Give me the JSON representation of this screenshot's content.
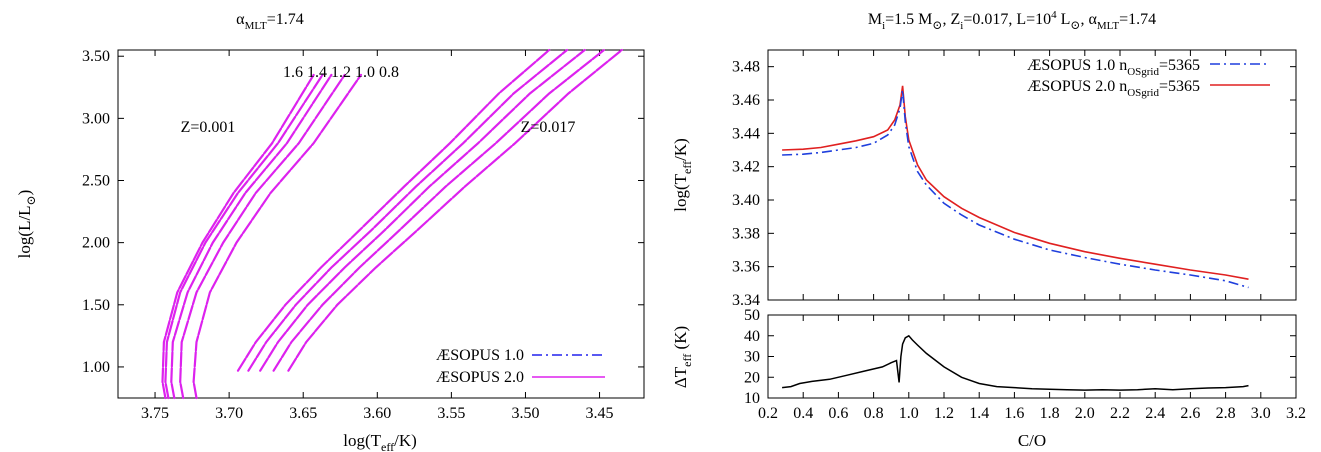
{
  "chart_data": [
    {
      "type": "line",
      "title": "α_MLT=1.74",
      "title_parts": {
        "symbol": "α",
        "sub": "MLT",
        "rest": "=1.74"
      },
      "xlabel": "log(T_eff/K)",
      "xlabel_parts": {
        "pre": "log(T",
        "sub": "eff",
        "post": "/K)"
      },
      "ylabel": "log(L/L⊙)",
      "ylabel_parts": {
        "pre": "log(L/L",
        "sub": "⊙",
        "post": ")"
      },
      "xlim": [
        3.775,
        3.42
      ],
      "ylim": [
        0.75,
        3.55
      ],
      "x_reversed": true,
      "xticks": [
        "3.75",
        "3.70",
        "3.65",
        "3.60",
        "3.55",
        "3.50",
        "3.45"
      ],
      "yticks": [
        "1.00",
        "1.50",
        "2.00",
        "2.50",
        "3.00",
        "3.50"
      ],
      "legend": {
        "placement": "bottom-right",
        "entries": [
          "ÆSOPUS 1.0",
          "ÆSOPUS 2.0"
        ]
      },
      "annotations": {
        "mass_labels": "1.6 1.4 1.2 1.0 0.8",
        "z_low": "Z=0.001",
        "z_high": "Z=0.017"
      },
      "colors": {
        "aesopus1": "#2222ee",
        "aesopus2": "#dd22ee"
      },
      "series": [
        {
          "group": "Z=0.001",
          "mass": "1.6",
          "x": [
            3.743,
            3.745,
            3.744,
            3.735,
            3.718,
            3.697,
            3.671,
            3.643
          ],
          "y": [
            0.75,
            0.88,
            1.2,
            1.6,
            2.0,
            2.4,
            2.8,
            3.35
          ]
        },
        {
          "group": "Z=0.001",
          "mass": "1.4",
          "x": [
            3.741,
            3.743,
            3.742,
            3.733,
            3.716,
            3.694,
            3.667,
            3.637
          ],
          "y": [
            0.75,
            0.88,
            1.2,
            1.6,
            2.0,
            2.4,
            2.8,
            3.35
          ]
        },
        {
          "group": "Z=0.001",
          "mass": "1.2",
          "x": [
            3.737,
            3.739,
            3.738,
            3.728,
            3.711,
            3.689,
            3.661,
            3.631
          ],
          "y": [
            0.75,
            0.88,
            1.2,
            1.6,
            2.0,
            2.4,
            2.8,
            3.35
          ]
        },
        {
          "group": "Z=0.001",
          "mass": "1.0",
          "x": [
            3.731,
            3.733,
            3.732,
            3.722,
            3.704,
            3.682,
            3.653,
            3.622
          ],
          "y": [
            0.75,
            0.88,
            1.2,
            1.6,
            2.0,
            2.4,
            2.8,
            3.35
          ]
        },
        {
          "group": "Z=0.001",
          "mass": "0.8",
          "x": [
            3.722,
            3.724,
            3.722,
            3.713,
            3.695,
            3.672,
            3.643,
            3.611
          ],
          "y": [
            0.75,
            0.88,
            1.2,
            1.6,
            2.0,
            2.4,
            2.8,
            3.35
          ]
        },
        {
          "group": "Z=0.017",
          "mass": "1.6",
          "x": [
            3.694,
            3.682,
            3.662,
            3.638,
            3.612,
            3.582,
            3.551,
            3.518,
            3.484
          ],
          "y": [
            0.97,
            1.2,
            1.5,
            1.8,
            2.1,
            2.45,
            2.8,
            3.2,
            3.55
          ]
        },
        {
          "group": "Z=0.017",
          "mass": "1.4",
          "x": [
            3.687,
            3.675,
            3.655,
            3.631,
            3.604,
            3.574,
            3.542,
            3.508,
            3.472
          ],
          "y": [
            0.97,
            1.2,
            1.5,
            1.8,
            2.1,
            2.45,
            2.8,
            3.2,
            3.55
          ]
        },
        {
          "group": "Z=0.017",
          "mass": "1.2",
          "x": [
            3.679,
            3.667,
            3.647,
            3.622,
            3.595,
            3.565,
            3.532,
            3.497,
            3.46
          ],
          "y": [
            0.97,
            1.2,
            1.5,
            1.8,
            2.1,
            2.45,
            2.8,
            3.2,
            3.55
          ]
        },
        {
          "group": "Z=0.017",
          "mass": "1.0",
          "x": [
            3.67,
            3.658,
            3.637,
            3.612,
            3.585,
            3.554,
            3.52,
            3.484,
            3.447
          ],
          "y": [
            0.97,
            1.2,
            1.5,
            1.8,
            2.1,
            2.45,
            2.8,
            3.2,
            3.55
          ]
        },
        {
          "group": "Z=0.017",
          "mass": "0.8",
          "x": [
            3.66,
            3.648,
            3.627,
            3.601,
            3.573,
            3.541,
            3.507,
            3.471,
            3.435
          ],
          "y": [
            0.97,
            1.2,
            1.5,
            1.8,
            2.1,
            2.45,
            2.8,
            3.2,
            3.55
          ]
        }
      ]
    },
    {
      "type": "line",
      "title": "M_i=1.5 M⊙, Z_i=0.017, L=10^4 L⊙, α_MLT=1.74",
      "title_parts": {
        "m": "M",
        "m_sub": "i",
        "m_rest": "=1.5 M",
        "sun": "⊙",
        "z": ", Z",
        "z_sub": "i",
        "z_rest": "=0.017, L=10",
        "l_sup": "4",
        "l_rest": " L",
        "a": ", α",
        "a_sub": "MLT",
        "a_rest": "=1.74"
      },
      "xlabel": "C/O",
      "ylabel": "log(T_eff/K)",
      "ylabel_parts": {
        "pre": "log(T",
        "sub": "eff",
        "post": "/K)"
      },
      "xlim": [
        0.2,
        3.2
      ],
      "ylim": [
        3.34,
        3.49
      ],
      "xticks": [
        "0.2",
        "0.4",
        "0.6",
        "0.8",
        "1.0",
        "1.2",
        "1.4",
        "1.6",
        "1.8",
        "2.0",
        "2.2",
        "2.4",
        "2.6",
        "2.8",
        "3.0",
        "3.2"
      ],
      "yticks": [
        "3.34",
        "3.36",
        "3.38",
        "3.40",
        "3.42",
        "3.44",
        "3.46",
        "3.48"
      ],
      "legend": {
        "placement": "top-right",
        "entries": [
          {
            "name": "ÆSOPUS 1.0 n_OSgrid=5365",
            "pre": "ÆSOPUS 1.0 n",
            "sub": "OSgrid",
            "post": "=5365"
          },
          {
            "name": "ÆSOPUS 2.0 n_OSgrid=5365",
            "pre": "ÆSOPUS 2.0 n",
            "sub": "OSgrid",
            "post": "=5365"
          }
        ]
      },
      "colors": {
        "aesopus1": "#1f3fdd",
        "aesopus2": "#e02020"
      },
      "series": [
        {
          "name": "ÆSOPUS 1.0 n_OSgrid=5365",
          "x": [
            0.28,
            0.4,
            0.5,
            0.6,
            0.7,
            0.8,
            0.88,
            0.92,
            0.95,
            0.965,
            0.98,
            1.0,
            1.05,
            1.1,
            1.2,
            1.3,
            1.4,
            1.6,
            1.8,
            2.0,
            2.2,
            2.4,
            2.6,
            2.8,
            2.93
          ],
          "y": [
            3.427,
            3.4275,
            3.4285,
            3.43,
            3.4315,
            3.434,
            3.439,
            3.445,
            3.455,
            3.466,
            3.447,
            3.432,
            3.417,
            3.409,
            3.398,
            3.391,
            3.385,
            3.3765,
            3.37,
            3.3655,
            3.3615,
            3.358,
            3.355,
            3.3515,
            3.3475
          ]
        },
        {
          "name": "ÆSOPUS 2.0 n_OSgrid=5365",
          "x": [
            0.28,
            0.4,
            0.5,
            0.6,
            0.7,
            0.8,
            0.88,
            0.92,
            0.95,
            0.965,
            0.98,
            1.0,
            1.05,
            1.1,
            1.2,
            1.3,
            1.4,
            1.6,
            1.8,
            2.0,
            2.2,
            2.4,
            2.6,
            2.8,
            2.93
          ],
          "y": [
            3.43,
            3.4305,
            3.4315,
            3.4335,
            3.4355,
            3.438,
            3.442,
            3.448,
            3.457,
            3.4685,
            3.45,
            3.436,
            3.421,
            3.412,
            3.402,
            3.395,
            3.3895,
            3.3805,
            3.374,
            3.369,
            3.365,
            3.3615,
            3.358,
            3.355,
            3.3525
          ]
        }
      ]
    },
    {
      "type": "line",
      "ylabel": "ΔT_eff (K)",
      "ylabel_parts": {
        "pre": "ΔT",
        "sub": "eff",
        "post": " (K)"
      },
      "xlim": [
        0.2,
        3.2
      ],
      "ylim": [
        10,
        50
      ],
      "yticks": [
        "10",
        "20",
        "30",
        "40",
        "50"
      ],
      "colors": {
        "line": "#000000"
      },
      "series": [
        {
          "x": [
            0.28,
            0.33,
            0.38,
            0.45,
            0.55,
            0.65,
            0.75,
            0.85,
            0.9,
            0.93,
            0.945,
            0.955,
            0.965,
            0.98,
            1.0,
            1.02,
            1.05,
            1.1,
            1.2,
            1.3,
            1.4,
            1.5,
            1.6,
            1.7,
            1.8,
            1.9,
            2.0,
            2.1,
            2.2,
            2.3,
            2.4,
            2.5,
            2.6,
            2.7,
            2.8,
            2.9,
            2.93
          ],
          "y": [
            15,
            15.5,
            17,
            18,
            19,
            21,
            23,
            25,
            27,
            28,
            17.5,
            30,
            36,
            39,
            40,
            38,
            35.5,
            31.5,
            25,
            20,
            17,
            15.5,
            15,
            14.5,
            14.2,
            14,
            13.8,
            14,
            13.8,
            14,
            14.5,
            14,
            14.5,
            14.8,
            15,
            15.5,
            16
          ]
        }
      ]
    }
  ]
}
